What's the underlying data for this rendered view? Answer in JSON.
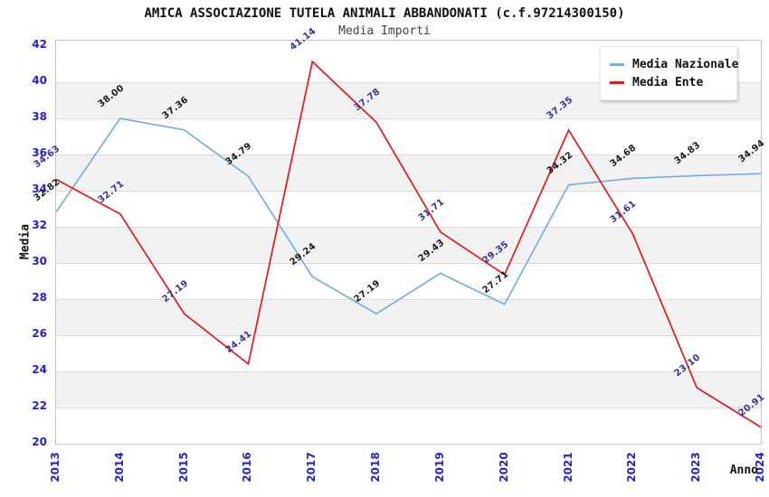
{
  "title": "AMICA ASSOCIAZIONE TUTELA ANIMALI ABBANDONATI (c.f.97214300150)",
  "subtitle": "Media Importi",
  "chart_data": {
    "type": "line",
    "x_categories": [
      "2013",
      "2014",
      "2015",
      "2016",
      "2017",
      "2018",
      "2019",
      "2020",
      "2021",
      "2022",
      "2023",
      "2024"
    ],
    "xlabel": "Anno",
    "ylabel": "Media",
    "ylim": [
      20,
      42
    ],
    "ytick_step": 2,
    "grid": true,
    "banded_background": true,
    "legend_position": "top-right",
    "series": [
      {
        "name": "Media Nazionale",
        "color": "#7aaede",
        "label_color": "#1a1a1a",
        "values": [
          32.82,
          38.0,
          37.36,
          34.79,
          29.24,
          27.19,
          29.43,
          27.71,
          34.32,
          34.68,
          34.83,
          34.94
        ]
      },
      {
        "name": "Media Ente",
        "color": "#e01b1b",
        "label_color": "#333399",
        "values": [
          34.63,
          32.71,
          27.19,
          24.41,
          41.14,
          37.78,
          31.71,
          29.35,
          37.35,
          31.61,
          23.1,
          20.91
        ]
      }
    ]
  },
  "colors": {
    "axis_tick": "#2323c8",
    "band": "#f2f2f2",
    "gridline": "#dcdcdc",
    "plot_border": "#c4c4c4"
  }
}
